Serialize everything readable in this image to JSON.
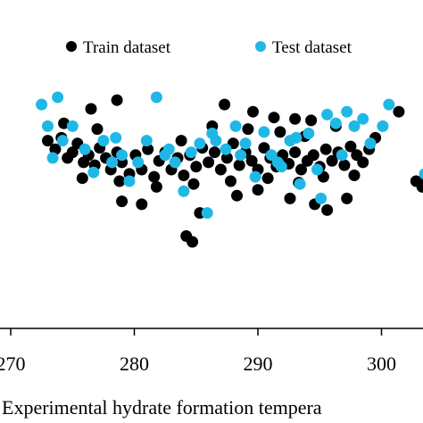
{
  "chart_data": {
    "type": "scatter",
    "title": "",
    "xlabel": "Experimental hydrate formation tempera",
    "ylabel": "",
    "xlim": [
      270,
      304
    ],
    "ylim": [
      -1.0,
      1.0
    ],
    "x_ticks": [
      "270",
      "280",
      "290",
      "300"
    ],
    "x_tick_values": [
      270,
      280,
      290,
      300
    ],
    "grid": false,
    "legend_position": "top",
    "colors": {
      "train": "#000000",
      "test": "#1fb8e6",
      "axis": "#000000"
    },
    "series": [
      {
        "name": "Train dataset",
        "color": "#000000",
        "points": [
          [
            273.0,
            0.2
          ],
          [
            273.6,
            0.14
          ],
          [
            274.1,
            0.22
          ],
          [
            274.6,
            0.08
          ],
          [
            275.0,
            0.12
          ],
          [
            275.4,
            0.18
          ],
          [
            275.9,
            0.05
          ],
          [
            276.3,
            0.1
          ],
          [
            276.8,
            0.03
          ],
          [
            277.2,
            0.15
          ],
          [
            277.7,
            0.08
          ],
          [
            278.1,
            0.0
          ],
          [
            278.6,
            0.12
          ],
          [
            279.0,
            0.05
          ],
          [
            279.6,
            -0.03
          ],
          [
            280.1,
            0.1
          ],
          [
            280.6,
            0.0
          ],
          [
            281.1,
            0.14
          ],
          [
            281.6,
            -0.05
          ],
          [
            282.0,
            0.06
          ],
          [
            282.5,
            0.12
          ],
          [
            283.0,
            0.0
          ],
          [
            283.5,
            0.08
          ],
          [
            284.0,
            -0.04
          ],
          [
            284.5,
            0.1
          ],
          [
            285.0,
            0.02
          ],
          [
            285.5,
            0.15
          ],
          [
            286.0,
            0.05
          ],
          [
            286.5,
            0.12
          ],
          [
            287.0,
            0.0
          ],
          [
            287.5,
            0.08
          ],
          [
            288.0,
            0.18
          ],
          [
            288.5,
            0.03
          ],
          [
            289.0,
            0.12
          ],
          [
            289.5,
            0.06
          ],
          [
            290.0,
            0.0
          ],
          [
            290.5,
            0.15
          ],
          [
            291.0,
            0.08
          ],
          [
            291.5,
            0.02
          ],
          [
            292.0,
            0.1
          ],
          [
            292.5,
            0.04
          ],
          [
            293.0,
            0.12
          ],
          [
            293.5,
            0.0
          ],
          [
            294.0,
            0.06
          ],
          [
            294.5,
            0.1
          ],
          [
            295.0,
            0.02
          ],
          [
            295.5,
            0.14
          ],
          [
            296.0,
            0.06
          ],
          [
            296.5,
            0.12
          ],
          [
            297.0,
            0.03
          ],
          [
            297.5,
            0.16
          ],
          [
            298.0,
            0.1
          ],
          [
            298.5,
            0.05
          ],
          [
            299.0,
            0.14
          ],
          [
            274.3,
            0.32
          ],
          [
            277.0,
            0.28
          ],
          [
            283.8,
            0.2
          ],
          [
            286.3,
            0.3
          ],
          [
            289.2,
            0.28
          ],
          [
            291.8,
            0.26
          ],
          [
            293.8,
            0.23
          ],
          [
            296.3,
            0.3
          ],
          [
            299.5,
            0.22
          ],
          [
            275.8,
            -0.06
          ],
          [
            278.8,
            -0.08
          ],
          [
            281.8,
            -0.12
          ],
          [
            284.8,
            -0.1
          ],
          [
            287.8,
            -0.08
          ],
          [
            290.8,
            -0.06
          ],
          [
            293.3,
            -0.09
          ],
          [
            295.3,
            -0.05
          ],
          [
            297.8,
            -0.04
          ],
          [
            276.5,
            0.42
          ],
          [
            278.6,
            0.48
          ],
          [
            287.3,
            0.45
          ],
          [
            289.6,
            0.4
          ],
          [
            291.3,
            0.36
          ],
          [
            293.0,
            0.35
          ],
          [
            294.3,
            0.34
          ],
          [
            301.4,
            0.4
          ],
          [
            302.8,
            -0.08
          ],
          [
            303.6,
            -0.05
          ],
          [
            303.3,
            -0.12
          ],
          [
            279.0,
            -0.22
          ],
          [
            280.6,
            -0.24
          ],
          [
            285.3,
            -0.3
          ],
          [
            288.3,
            -0.18
          ],
          [
            290.0,
            -0.14
          ],
          [
            292.6,
            -0.2
          ],
          [
            294.6,
            -0.24
          ],
          [
            295.6,
            -0.28
          ],
          [
            297.2,
            -0.2
          ],
          [
            284.2,
            -0.46
          ],
          [
            284.7,
            -0.5
          ]
        ]
      },
      {
        "name": "Test dataset",
        "color": "#1fb8e6",
        "points": [
          [
            272.5,
            0.45
          ],
          [
            273.0,
            0.3
          ],
          [
            273.4,
            0.08
          ],
          [
            273.8,
            0.5
          ],
          [
            274.2,
            0.2
          ],
          [
            275.0,
            0.3
          ],
          [
            276.0,
            0.14
          ],
          [
            276.7,
            -0.02
          ],
          [
            277.5,
            0.2
          ],
          [
            278.2,
            0.05
          ],
          [
            279.0,
            0.1
          ],
          [
            279.6,
            -0.08
          ],
          [
            280.3,
            0.05
          ],
          [
            281.0,
            0.2
          ],
          [
            281.8,
            0.5
          ],
          [
            282.5,
            0.1
          ],
          [
            283.3,
            0.05
          ],
          [
            284.0,
            -0.15
          ],
          [
            284.6,
            0.12
          ],
          [
            285.3,
            0.18
          ],
          [
            285.9,
            -0.3
          ],
          [
            286.6,
            0.2
          ],
          [
            287.4,
            0.14
          ],
          [
            288.2,
            0.3
          ],
          [
            289.0,
            0.18
          ],
          [
            289.8,
            -0.05
          ],
          [
            290.5,
            0.26
          ],
          [
            291.1,
            0.1
          ],
          [
            291.9,
            0.02
          ],
          [
            292.6,
            0.2
          ],
          [
            293.4,
            -0.1
          ],
          [
            294.1,
            0.25
          ],
          [
            294.8,
            0.0
          ],
          [
            295.6,
            0.38
          ],
          [
            296.3,
            0.32
          ],
          [
            297.2,
            0.4
          ],
          [
            297.8,
            0.3
          ],
          [
            298.5,
            0.35
          ],
          [
            299.1,
            0.18
          ],
          [
            300.1,
            0.3
          ],
          [
            300.6,
            0.45
          ],
          [
            303.5,
            -0.03
          ],
          [
            278.5,
            0.22
          ],
          [
            282.8,
            0.14
          ],
          [
            286.3,
            0.25
          ],
          [
            288.6,
            0.1
          ],
          [
            291.6,
            0.05
          ],
          [
            295.1,
            -0.2
          ],
          [
            296.8,
            0.1
          ],
          [
            293.1,
            0.22
          ]
        ]
      }
    ]
  }
}
